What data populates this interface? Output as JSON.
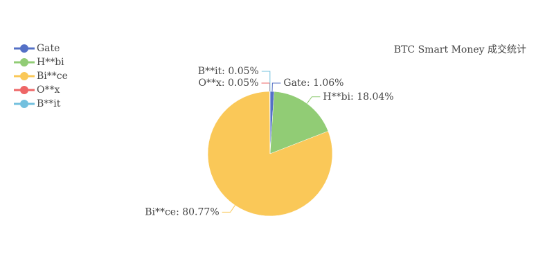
{
  "chart_data": {
    "type": "pie",
    "title": "BTC Smart Money 成交统计",
    "categories": [
      "Gate",
      "H**bi",
      "Bi**ce",
      "O**x",
      "B**it"
    ],
    "values": [
      1.06,
      18.04,
      80.77,
      0.05,
      0.05
    ],
    "value_labels": [
      "Gate: 1.06%",
      "H**bi: 18.04%",
      "Bi**ce: 80.77%",
      "O**x: 0.05%",
      "B**it: 0.05%"
    ],
    "colors": [
      "#5470c6",
      "#91cc75",
      "#fac858",
      "#ee6666",
      "#73c0de"
    ],
    "legend": "top-left"
  }
}
